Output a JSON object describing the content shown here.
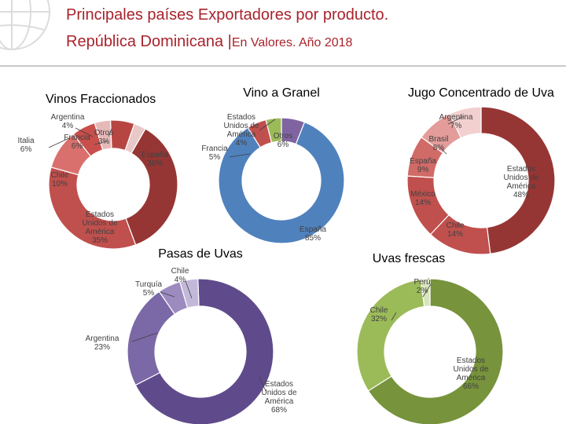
{
  "header": {
    "title_line1": "Principales países Exportadores por producto.",
    "title_line2_main": "República Dominicana |",
    "title_line2_sub": "En Valores. Año 2018"
  },
  "chart_data": [
    {
      "type": "pie",
      "title": "Vinos Fraccionados",
      "slices": [
        {
          "name": "España",
          "value": 36,
          "label": "España\n36%",
          "color": "#963634"
        },
        {
          "name": "Estados Unidos de América",
          "value": 35,
          "label": "Estados\nUnidos de\nAmérica\n35%",
          "color": "#c0504d"
        },
        {
          "name": "Chile",
          "value": 10,
          "label": "Chile\n10%",
          "color": "#d9706d"
        },
        {
          "name": "Italia",
          "value": 6,
          "label": "Italia\n6%",
          "color": "#c84f4b"
        },
        {
          "name": "Argentina",
          "value": 4,
          "label": "Argentina\n4%",
          "color": "#e6b9b8"
        },
        {
          "name": "Francia",
          "value": 6,
          "label": "Francia\n6%",
          "color": "#b74642"
        },
        {
          "name": "Otros",
          "value": 3,
          "label": "Otros\n3%",
          "color": "#e8c9c8"
        }
      ]
    },
    {
      "type": "pie",
      "title": "Vino a Granel",
      "slices": [
        {
          "name": "Otros",
          "value": 6,
          "label": "Otros\n6%",
          "color": "#8064a2"
        },
        {
          "name": "España",
          "value": 85,
          "label": "España\n85%",
          "color": "#4f81bd"
        },
        {
          "name": "Francia",
          "value": 5,
          "label": "Francia\n5%",
          "color": "#c0504d"
        },
        {
          "name": "Estados Unidos de América",
          "value": 4,
          "label": "Estados\nUnidos de\nAmérica\n4%",
          "color": "#9bbb59"
        }
      ]
    },
    {
      "type": "pie",
      "title": "Jugo Concentrado de Uva",
      "slices": [
        {
          "name": "Estados Unidos de América",
          "value": 48,
          "label": "Estados\nUnidos de\nAmérica\n48%",
          "color": "#963634"
        },
        {
          "name": "Chile",
          "value": 14,
          "label": "Chile\n14%",
          "color": "#c0504d"
        },
        {
          "name": "México",
          "value": 14,
          "label": "México\n14%",
          "color": "#c0504d"
        },
        {
          "name": "España",
          "value": 9,
          "label": "España\n9%",
          "color": "#d16b68"
        },
        {
          "name": "Brasil",
          "value": 8,
          "label": "Brasil\n8%",
          "color": "#e39c9a"
        },
        {
          "name": "Argentina",
          "value": 7,
          "label": "Argentina\n7%",
          "color": "#f2d0cf"
        }
      ]
    },
    {
      "type": "pie",
      "title": "Pasas de Uvas",
      "slices": [
        {
          "name": "Estados Unidos de América",
          "value": 68,
          "label": "Estados\nUnidos de\nAmérica\n68%",
          "color": "#5f4b8b"
        },
        {
          "name": "Argentina",
          "value": 23,
          "label": "Argentina\n23%",
          "color": "#7b68a6"
        },
        {
          "name": "Turquía",
          "value": 5,
          "label": "Turquía\n5%",
          "color": "#9b8bbf"
        },
        {
          "name": "Chile",
          "value": 4,
          "label": "Chile\n4%",
          "color": "#c3b8da"
        }
      ]
    },
    {
      "type": "pie",
      "title": "Uvas frescas",
      "slices": [
        {
          "name": "Estados Unidos de América",
          "value": 66,
          "label": "Estados\nUnidos de\nAmérica\n66%",
          "color": "#77933c"
        },
        {
          "name": "Chile",
          "value": 32,
          "label": "Chile\n32%",
          "color": "#9bbb59"
        },
        {
          "name": "Perú",
          "value": 2,
          "label": "Perú\n2%",
          "color": "#d7e4bd"
        }
      ]
    }
  ]
}
